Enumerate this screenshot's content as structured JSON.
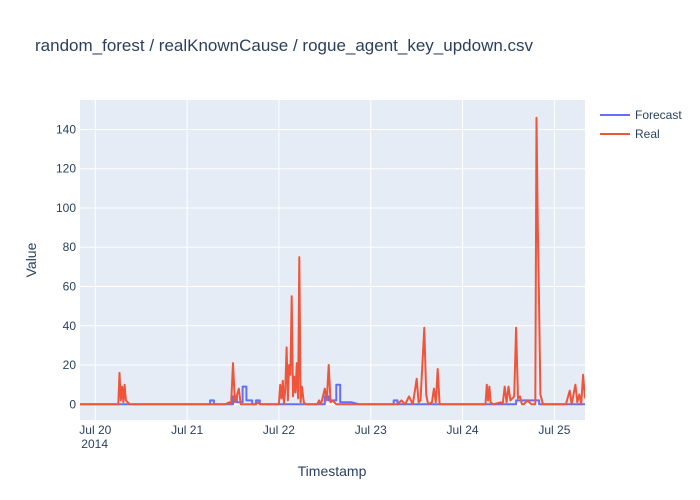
{
  "chart_data": {
    "type": "line",
    "title": "random_forest / realKnownCause / rogue_agent_key_updown.csv",
    "xlabel": "Timestamp",
    "ylabel": "Value",
    "x_axis_type": "date",
    "xlim": [
      "2014-07-19 20:00",
      "2014-07-25 08:00"
    ],
    "x_ticks": [
      {
        "t": "2014-07-20 00:00",
        "label": "Jul 20",
        "sublabel": "2014"
      },
      {
        "t": "2014-07-21 00:00",
        "label": "Jul 21",
        "sublabel": ""
      },
      {
        "t": "2014-07-22 00:00",
        "label": "Jul 22",
        "sublabel": ""
      },
      {
        "t": "2014-07-23 00:00",
        "label": "Jul 23",
        "sublabel": ""
      },
      {
        "t": "2014-07-24 00:00",
        "label": "Jul 24",
        "sublabel": ""
      },
      {
        "t": "2014-07-25 00:00",
        "label": "Jul 25",
        "sublabel": ""
      }
    ],
    "ylim": [
      -8,
      155
    ],
    "y_ticks": [
      0,
      20,
      40,
      60,
      80,
      100,
      120,
      140
    ],
    "grid": true,
    "legend_position": "top-right",
    "series": [
      {
        "name": "Forecast",
        "color": "#636efa",
        "points": [
          [
            "2014-07-19 20:00",
            0
          ],
          [
            "2014-07-21 06:00",
            0
          ],
          [
            "2014-07-21 06:00",
            2
          ],
          [
            "2014-07-21 07:00",
            2
          ],
          [
            "2014-07-21 07:00",
            0
          ],
          [
            "2014-07-21 12:00",
            0
          ],
          [
            "2014-07-21 12:00",
            4
          ],
          [
            "2014-07-21 13:00",
            4
          ],
          [
            "2014-07-21 13:00",
            1
          ],
          [
            "2014-07-21 14:30",
            1
          ],
          [
            "2014-07-21 14:30",
            9
          ],
          [
            "2014-07-21 15:30",
            9
          ],
          [
            "2014-07-21 15:30",
            2
          ],
          [
            "2014-07-21 17:00",
            2
          ],
          [
            "2014-07-21 17:00",
            0
          ],
          [
            "2014-07-21 18:00",
            0
          ],
          [
            "2014-07-21 18:00",
            2
          ],
          [
            "2014-07-21 19:00",
            2
          ],
          [
            "2014-07-21 19:00",
            0
          ],
          [
            "2014-07-22 12:00",
            0
          ],
          [
            "2014-07-22 12:00",
            4
          ],
          [
            "2014-07-22 13:00",
            4
          ],
          [
            "2014-07-22 13:00",
            2
          ],
          [
            "2014-07-22 15:00",
            2
          ],
          [
            "2014-07-22 15:00",
            10
          ],
          [
            "2014-07-22 16:00",
            10
          ],
          [
            "2014-07-22 16:00",
            1
          ],
          [
            "2014-07-22 19:00",
            1
          ],
          [
            "2014-07-22 21:00",
            0
          ],
          [
            "2014-07-23 06:00",
            0
          ],
          [
            "2014-07-23 06:00",
            2
          ],
          [
            "2014-07-23 07:00",
            2
          ],
          [
            "2014-07-23 07:00",
            0
          ],
          [
            "2014-07-24 14:00",
            0
          ],
          [
            "2014-07-24 14:00",
            2
          ],
          [
            "2014-07-24 20:00",
            2
          ],
          [
            "2014-07-24 20:00",
            0
          ],
          [
            "2014-07-25 08:00",
            0
          ]
        ]
      },
      {
        "name": "Real",
        "color": "#ef553b",
        "points": [
          [
            "2014-07-19 20:00",
            0
          ],
          [
            "2014-07-20 06:00",
            0
          ],
          [
            "2014-07-20 06:20",
            16
          ],
          [
            "2014-07-20 06:40",
            2
          ],
          [
            "2014-07-20 07:00",
            9
          ],
          [
            "2014-07-20 07:20",
            1
          ],
          [
            "2014-07-20 07:40",
            10
          ],
          [
            "2014-07-20 08:00",
            2
          ],
          [
            "2014-07-20 09:00",
            0
          ],
          [
            "2014-07-21 10:00",
            0
          ],
          [
            "2014-07-21 11:00",
            1
          ],
          [
            "2014-07-21 11:30",
            0
          ],
          [
            "2014-07-21 12:00",
            21
          ],
          [
            "2014-07-21 12:30",
            1
          ],
          [
            "2014-07-21 13:30",
            8
          ],
          [
            "2014-07-21 14:00",
            0
          ],
          [
            "2014-07-21 18:00",
            0
          ],
          [
            "2014-07-21 18:30",
            1
          ],
          [
            "2014-07-21 19:00",
            0
          ],
          [
            "2014-07-22 00:00",
            0
          ],
          [
            "2014-07-22 00:20",
            10
          ],
          [
            "2014-07-22 00:40",
            3
          ],
          [
            "2014-07-22 01:00",
            12
          ],
          [
            "2014-07-22 01:20",
            0
          ],
          [
            "2014-07-22 01:40",
            8
          ],
          [
            "2014-07-22 02:00",
            29
          ],
          [
            "2014-07-22 02:20",
            2
          ],
          [
            "2014-07-22 02:40",
            20
          ],
          [
            "2014-07-22 03:00",
            15
          ],
          [
            "2014-07-22 03:20",
            55
          ],
          [
            "2014-07-22 03:40",
            4
          ],
          [
            "2014-07-22 04:00",
            14
          ],
          [
            "2014-07-22 04:20",
            6
          ],
          [
            "2014-07-22 04:40",
            21
          ],
          [
            "2014-07-22 05:00",
            3
          ],
          [
            "2014-07-22 05:20",
            75
          ],
          [
            "2014-07-22 05:40",
            1
          ],
          [
            "2014-07-22 06:00",
            9
          ],
          [
            "2014-07-22 06:30",
            1
          ],
          [
            "2014-07-22 07:00",
            0
          ],
          [
            "2014-07-22 10:00",
            0
          ],
          [
            "2014-07-22 10:30",
            2
          ],
          [
            "2014-07-22 11:00",
            0
          ],
          [
            "2014-07-22 12:00",
            8
          ],
          [
            "2014-07-22 12:30",
            2
          ],
          [
            "2014-07-22 13:00",
            20
          ],
          [
            "2014-07-22 13:30",
            1
          ],
          [
            "2014-07-22 14:00",
            2
          ],
          [
            "2014-07-22 15:00",
            0
          ],
          [
            "2014-07-23 07:00",
            0
          ],
          [
            "2014-07-23 08:00",
            2
          ],
          [
            "2014-07-23 09:00",
            0
          ],
          [
            "2014-07-23 10:00",
            4
          ],
          [
            "2014-07-23 11:00",
            0
          ],
          [
            "2014-07-23 12:00",
            13
          ],
          [
            "2014-07-23 12:30",
            1
          ],
          [
            "2014-07-23 13:00",
            2
          ],
          [
            "2014-07-23 14:00",
            39
          ],
          [
            "2014-07-23 14:30",
            5
          ],
          [
            "2014-07-23 15:00",
            0
          ],
          [
            "2014-07-23 16:00",
            1
          ],
          [
            "2014-07-23 16:30",
            8
          ],
          [
            "2014-07-23 17:00",
            1
          ],
          [
            "2014-07-23 17:30",
            18
          ],
          [
            "2014-07-23 18:00",
            0
          ],
          [
            "2014-07-24 06:00",
            0
          ],
          [
            "2014-07-24 06:20",
            10
          ],
          [
            "2014-07-24 06:40",
            2
          ],
          [
            "2014-07-24 07:00",
            9
          ],
          [
            "2014-07-24 07:20",
            1
          ],
          [
            "2014-07-24 08:00",
            0
          ],
          [
            "2014-07-24 10:00",
            1
          ],
          [
            "2014-07-24 10:30",
            0
          ],
          [
            "2014-07-24 11:00",
            9
          ],
          [
            "2014-07-24 11:30",
            1
          ],
          [
            "2014-07-24 12:00",
            9
          ],
          [
            "2014-07-24 12:30",
            2
          ],
          [
            "2014-07-24 13:30",
            4
          ],
          [
            "2014-07-24 14:00",
            39
          ],
          [
            "2014-07-24 14:30",
            3
          ],
          [
            "2014-07-24 15:00",
            4
          ],
          [
            "2014-07-24 15:30",
            0
          ],
          [
            "2014-07-24 16:00",
            0
          ],
          [
            "2014-07-24 17:00",
            2
          ],
          [
            "2014-07-24 18:00",
            0
          ],
          [
            "2014-07-24 19:00",
            0
          ],
          [
            "2014-07-24 19:20",
            146
          ],
          [
            "2014-07-24 19:40",
            90
          ],
          [
            "2014-07-24 20:00",
            50
          ],
          [
            "2014-07-24 20:20",
            5
          ],
          [
            "2014-07-24 21:00",
            0
          ],
          [
            "2014-07-25 03:00",
            0
          ],
          [
            "2014-07-25 04:00",
            7
          ],
          [
            "2014-07-25 04:30",
            0
          ],
          [
            "2014-07-25 05:30",
            10
          ],
          [
            "2014-07-25 06:00",
            1
          ],
          [
            "2014-07-25 06:30",
            5
          ],
          [
            "2014-07-25 07:00",
            0
          ],
          [
            "2014-07-25 07:30",
            15
          ],
          [
            "2014-07-25 08:00",
            3
          ]
        ]
      }
    ]
  }
}
